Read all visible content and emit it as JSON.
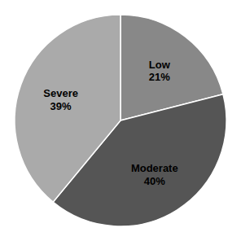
{
  "chart_data": {
    "type": "pie",
    "categories": [
      "Low",
      "Moderate",
      "Severe"
    ],
    "values": [
      21,
      40,
      39
    ],
    "value_labels": [
      "21%",
      "40%",
      "39%"
    ],
    "colors": [
      "#888888",
      "#555555",
      "#aaaaaa"
    ],
    "data_labels": true
  }
}
